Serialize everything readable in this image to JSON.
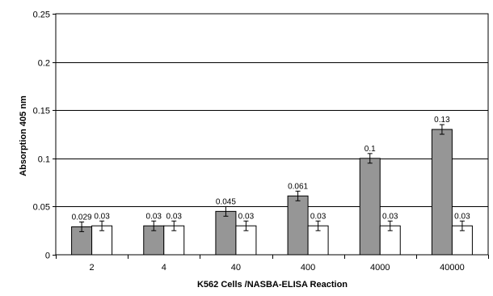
{
  "chart_data": {
    "type": "bar",
    "title": "",
    "xlabel": "K562 Cells /NASBA-ELISA Reaction",
    "ylabel": "Absorption 405 nm",
    "categories": [
      "2",
      "4",
      "40",
      "400",
      "4000",
      "40000"
    ],
    "ylim": [
      0,
      0.25
    ],
    "yticks": [
      0,
      0.05,
      0.1,
      0.15,
      0.2,
      0.25
    ],
    "ytick_labels": [
      "0",
      "0.05",
      "0.1",
      "0.15",
      "0.2",
      "0.25"
    ],
    "grid": true,
    "legend": "none",
    "series": [
      {
        "values": [
          0.029,
          0.03,
          0.045,
          0.061,
          0.1,
          0.13
        ],
        "labels": [
          "0.029",
          "0.03",
          "0.045",
          "0.061",
          "0.1",
          "0.13"
        ],
        "errors": [
          0.005,
          0.005,
          0.005,
          0.005,
          0.005,
          0.005
        ],
        "color": "#969696"
      },
      {
        "values": [
          0.03,
          0.03,
          0.03,
          0.03,
          0.03,
          0.03
        ],
        "labels": [
          "0.03",
          "0.03",
          "0.03",
          "0.03",
          "0.03",
          "0.03"
        ],
        "errors": [
          0.005,
          0.005,
          0.005,
          0.005,
          0.005,
          0.005
        ],
        "color": "#ffffff"
      }
    ]
  }
}
